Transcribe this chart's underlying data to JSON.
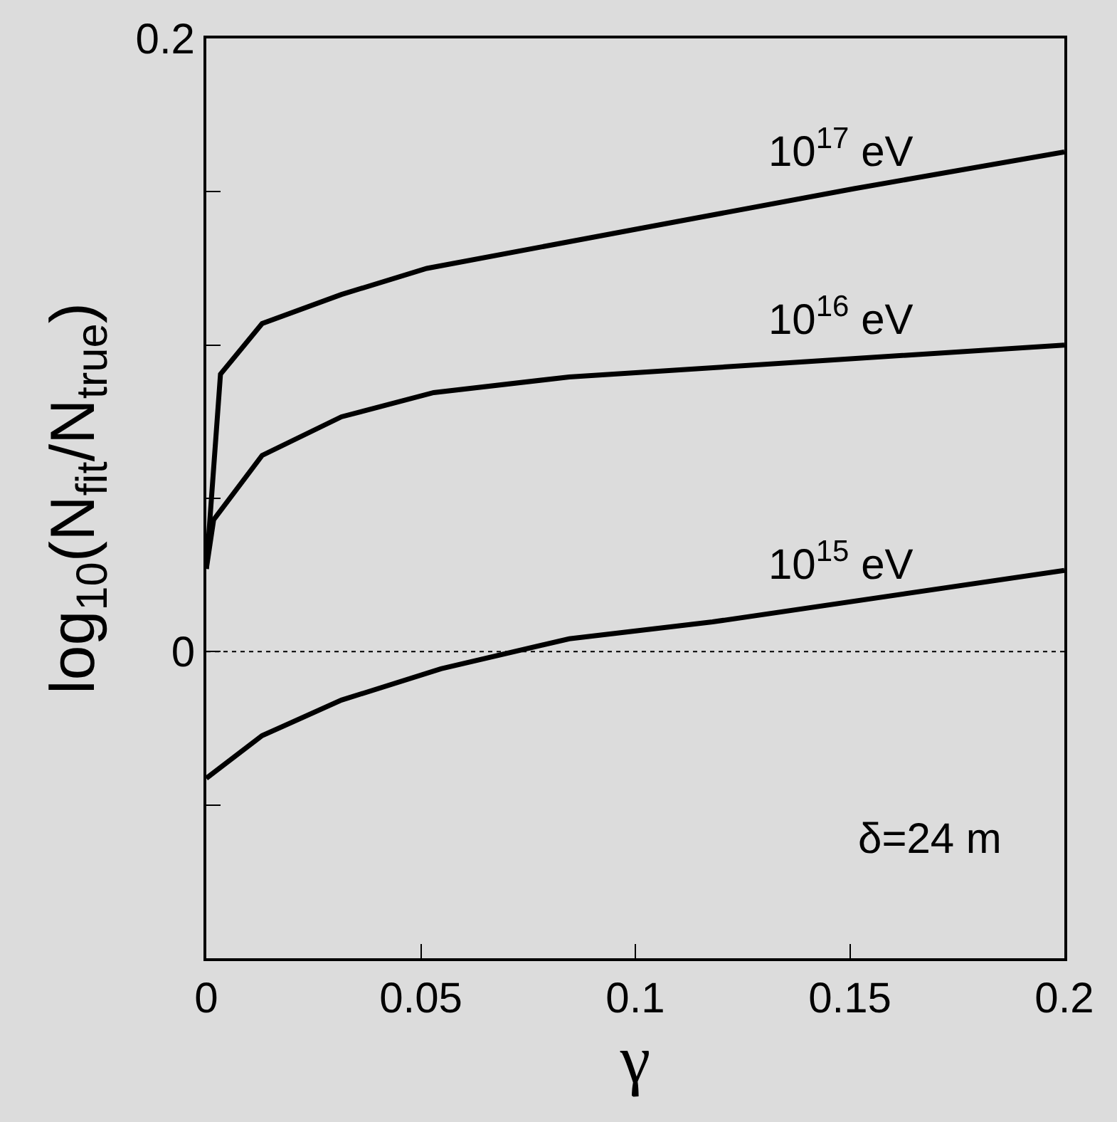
{
  "chart_data": {
    "type": "line",
    "xlabel": "γ",
    "ylabel": "log$_{10}$(N$_{fit}$/N$_{true}$)",
    "xlim": [
      0,
      0.2
    ],
    "xticks": [
      0,
      0.05,
      0.1,
      0.15,
      0.2
    ],
    "ylim": [
      -0.1,
      0.2
    ],
    "yticks": [
      {
        "value": -0.1,
        "label": null
      },
      {
        "value": -0.05,
        "label": null
      },
      0,
      {
        "value": 0.05,
        "label": null
      },
      {
        "value": 0.1,
        "label": null
      },
      {
        "value": 0.15,
        "label": null
      },
      0.2
    ],
    "grid": false,
    "legend": false,
    "marker": "none",
    "line_style": "solid",
    "series": [
      {
        "name": "10$^{17}$ eV",
        "color": "#000000",
        "x": [
          0,
          0.0033,
          0.013,
          0.0315,
          0.0514,
          0.101,
          0.151,
          0.2
        ],
        "values": [
          0.027,
          0.0905,
          0.107,
          0.1165,
          0.125,
          0.138,
          0.151,
          0.163
        ]
      },
      {
        "name": "10$^{16}$ eV",
        "color": "#000000",
        "x": [
          0,
          0.0017,
          0.013,
          0.0315,
          0.053,
          0.0846,
          0.2
        ],
        "values": [
          0.027,
          0.043,
          0.064,
          0.0766,
          0.0845,
          0.0896,
          0.1
        ]
      },
      {
        "name": "10$^{15}$ eV",
        "color": "#000000",
        "x": [
          0,
          0.013,
          0.0315,
          0.0547,
          0.0846,
          0.118,
          0.2
        ],
        "values": [
          -0.0413,
          -0.0274,
          -0.0158,
          -0.0056,
          0.0042,
          0.0097,
          0.0265
        ]
      }
    ],
    "ref_lines": [
      {
        "axis": "y",
        "value": 0,
        "label": null,
        "color": "#000000",
        "line_style": "dotted"
      }
    ],
    "annotations": [
      "δ=24 m"
    ]
  }
}
